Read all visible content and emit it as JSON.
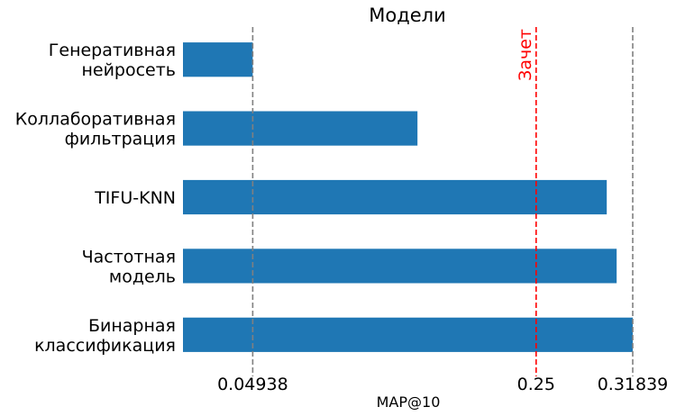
{
  "chart_data": {
    "type": "bar",
    "orientation": "horizontal",
    "title": "Модели",
    "xlabel": "MAP@10",
    "ylabel": "",
    "categories": [
      [
        "Генеративная",
        "нейросеть"
      ],
      [
        "Коллаборативная",
        "фильтрация"
      ],
      [
        "TIFU-KNN"
      ],
      [
        "Частотная",
        "модель"
      ],
      [
        "Бинарная",
        "классификация"
      ]
    ],
    "values": [
      0.04938,
      0.166,
      0.3,
      0.307,
      0.31839
    ],
    "xlim": [
      0,
      0.31839
    ],
    "xticks": [
      {
        "value": 0.04938,
        "label": "0.04938"
      },
      {
        "value": 0.25,
        "label": "0.25"
      },
      {
        "value": 0.31839,
        "label": "0.31839"
      }
    ],
    "reference_lines": [
      {
        "value": 0.04938,
        "label": "",
        "color": "#808080",
        "style": "dashed"
      },
      {
        "value": 0.25,
        "label": "Зачет",
        "color": "#ff0000",
        "style": "dashed"
      },
      {
        "value": 0.31839,
        "label": "",
        "color": "#808080",
        "style": "dashed"
      }
    ],
    "bar_color": "#1f77b4",
    "grid": false,
    "legend": "none"
  }
}
